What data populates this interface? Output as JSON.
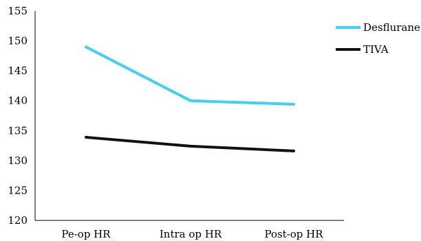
{
  "chart_data": {
    "type": "line",
    "title": "",
    "xlabel": "",
    "ylabel": "",
    "categories": [
      "Pe-op HR",
      "Intra op HR",
      "Post-op HR"
    ],
    "ylim": [
      120,
      155
    ],
    "yticks": [
      "120",
      "125",
      "130",
      "135",
      "140",
      "145",
      "150",
      "155"
    ],
    "ytick_values": [
      120,
      125,
      130,
      135,
      140,
      145,
      150,
      155
    ],
    "grid": false,
    "legend_position": "right",
    "series": [
      {
        "name": "Desflurane",
        "color": "#3fd0f5",
        "values": [
          149,
          140,
          139.4
        ]
      },
      {
        "name": "TIVA",
        "color": "#111111",
        "values": [
          133.9,
          132.4,
          131.6
        ]
      }
    ]
  }
}
